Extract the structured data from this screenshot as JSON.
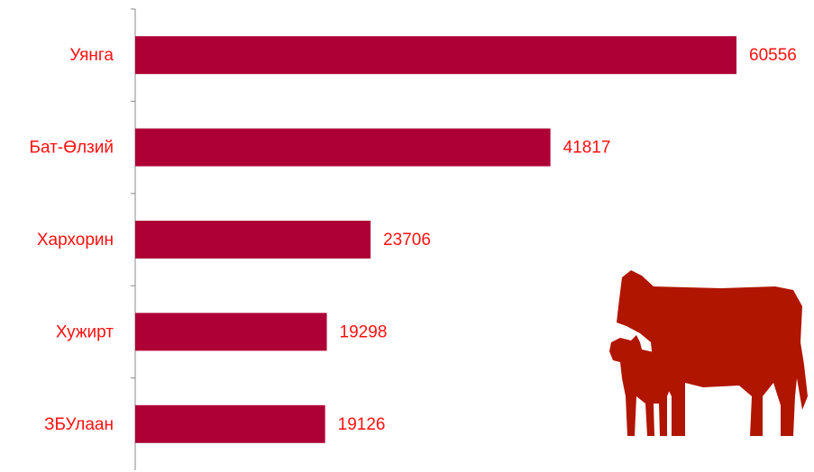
{
  "chart_data": {
    "type": "bar",
    "orientation": "horizontal",
    "categories": [
      "Уянга",
      "Бат-Өлзий",
      "Хархорин",
      "Хужирт",
      "ЗБУлаан"
    ],
    "values": [
      60556,
      41817,
      23706,
      19298,
      19126
    ],
    "color": "#ae0036"
  }
}
